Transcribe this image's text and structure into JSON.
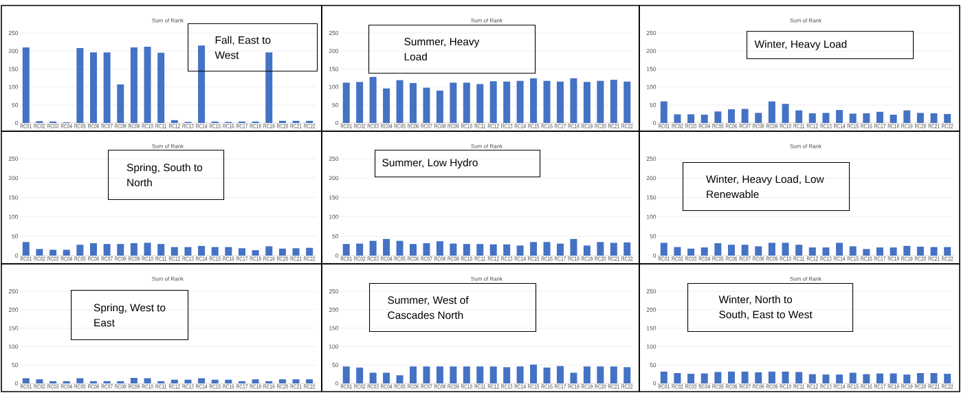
{
  "chart_data": [
    {
      "type": "bar",
      "title": "Sum of Rank",
      "categories": [
        "RC01",
        "RC02",
        "RC03",
        "RC04",
        "RC05",
        "RC06",
        "RC07",
        "RC08",
        "RC09",
        "RC10",
        "RC11",
        "RC12",
        "RC13",
        "RC14",
        "RC15",
        "RC16",
        "RC17",
        "RC18",
        "RC19",
        "RC20",
        "RC21",
        "RC22"
      ],
      "values": [
        210,
        5,
        4,
        2,
        208,
        196,
        196,
        107,
        210,
        212,
        195,
        8,
        3,
        215,
        4,
        3,
        4,
        4,
        196,
        6,
        6,
        6
      ],
      "color": "#4472c4",
      "ylim": [
        0,
        250
      ],
      "yticks": [
        0,
        50,
        100,
        150,
        200,
        250
      ],
      "grid": "y",
      "annotations": [
        "Fall, East to West"
      ]
    },
    {
      "type": "bar",
      "title": "Sum of Rank",
      "categories": [
        "RC01",
        "RC02",
        "RC03",
        "RC04",
        "RC05",
        "RC06",
        "RC07",
        "RC08",
        "RC09",
        "RC10",
        "RC11",
        "RC12",
        "RC13",
        "RC14",
        "RC15",
        "RC16",
        "RC17",
        "RC18",
        "RC19",
        "RC20",
        "RC21",
        "RC22"
      ],
      "values": [
        112,
        114,
        128,
        96,
        119,
        111,
        98,
        90,
        112,
        112,
        108,
        116,
        115,
        117,
        124,
        117,
        115,
        124,
        114,
        117,
        120,
        115
      ],
      "color": "#4472c4",
      "ylim": [
        0,
        250
      ],
      "yticks": [
        0,
        50,
        100,
        150,
        200,
        250
      ],
      "grid": "y",
      "annotations": [
        "Summer, Heavy Load"
      ]
    },
    {
      "type": "bar",
      "title": "Sum of Rank",
      "categories": [
        "RC01",
        "RC02",
        "RC03",
        "RC04",
        "RC05",
        "RC06",
        "RC07",
        "RC08",
        "RC09",
        "RC10",
        "RC11",
        "RC12",
        "RC13",
        "RC14",
        "RC15",
        "RC16",
        "RC17",
        "RC18",
        "RC19",
        "RC20",
        "RC21",
        "RC22"
      ],
      "values": [
        60,
        24,
        24,
        23,
        32,
        38,
        39,
        28,
        60,
        53,
        35,
        27,
        28,
        36,
        26,
        27,
        31,
        23,
        35,
        28,
        27,
        25
      ],
      "color": "#4472c4",
      "ylim": [
        0,
        250
      ],
      "yticks": [
        0,
        50,
        100,
        150,
        200,
        250
      ],
      "grid": "y",
      "annotations": [
        "Winter, Heavy Load"
      ]
    },
    {
      "type": "bar",
      "title": "Sum of Rank",
      "categories": [
        "RC01",
        "RC02",
        "RC03",
        "RC04",
        "RC05",
        "RC06",
        "RC07",
        "RC08",
        "RC09",
        "RC10",
        "RC11",
        "RC12",
        "RC13",
        "RC14",
        "RC15",
        "RC16",
        "RC17",
        "RC18",
        "RC19",
        "RC20",
        "RC21",
        "RC22"
      ],
      "values": [
        35,
        17,
        15,
        15,
        28,
        32,
        30,
        30,
        32,
        33,
        30,
        22,
        22,
        25,
        22,
        22,
        19,
        14,
        24,
        18,
        19,
        20
      ],
      "color": "#4472c4",
      "ylim": [
        0,
        250
      ],
      "yticks": [
        0,
        50,
        100,
        150,
        200,
        250
      ],
      "grid": "y",
      "annotations": [
        "Spring, South to North"
      ]
    },
    {
      "type": "bar",
      "title": "Sum of Rank",
      "categories": [
        "RC01",
        "RC02",
        "RC03",
        "RC04",
        "RC05",
        "RC06",
        "RC07",
        "RC08",
        "RC09",
        "RC10",
        "RC11",
        "RC12",
        "RC13",
        "RC14",
        "RC15",
        "RC16",
        "RC17",
        "RC18",
        "RC19",
        "RC20",
        "RC21",
        "RC22"
      ],
      "values": [
        30,
        31,
        38,
        43,
        38,
        30,
        32,
        37,
        31,
        30,
        30,
        29,
        29,
        26,
        35,
        35,
        31,
        43,
        26,
        35,
        33,
        34
      ],
      "color": "#4472c4",
      "ylim": [
        0,
        250
      ],
      "yticks": [
        0,
        50,
        100,
        150,
        200,
        250
      ],
      "grid": "y",
      "annotations": [
        "Summer, Low Hydro"
      ]
    },
    {
      "type": "bar",
      "title": "Sum of Rank",
      "categories": [
        "RC01",
        "RC02",
        "RC03",
        "RC04",
        "RC05",
        "RC06",
        "RC07",
        "RC08",
        "RC09",
        "RC10",
        "RC11",
        "RC12",
        "RC13",
        "RC14",
        "RC15",
        "RC16",
        "RC17",
        "RC18",
        "RC19",
        "RC20",
        "RC21",
        "RC22"
      ],
      "values": [
        33,
        22,
        18,
        21,
        32,
        28,
        28,
        24,
        33,
        33,
        28,
        21,
        21,
        33,
        24,
        17,
        21,
        21,
        25,
        23,
        22,
        22
      ],
      "color": "#4472c4",
      "ylim": [
        0,
        250
      ],
      "yticks": [
        0,
        50,
        100,
        150,
        200,
        250
      ],
      "grid": "y",
      "annotations": [
        "Winter, Heavy Load, Low Renewable"
      ]
    },
    {
      "type": "bar",
      "title": "Sum of Rank",
      "categories": [
        "RC01",
        "RC02",
        "RC03",
        "RC04",
        "RC05",
        "RC06",
        "RC07",
        "RC08",
        "RC09",
        "RC10",
        "RC11",
        "RC12",
        "RC13",
        "RC14",
        "RC15",
        "RC16",
        "RC17",
        "RC18",
        "RC19",
        "RC20",
        "RC21",
        "RC22"
      ],
      "values": [
        14,
        11,
        6,
        6,
        14,
        6,
        6,
        6,
        15,
        14,
        6,
        10,
        10,
        14,
        10,
        10,
        6,
        11,
        6,
        11,
        11,
        11
      ],
      "color": "#4472c4",
      "ylim": [
        0,
        250
      ],
      "yticks": [
        0,
        50,
        100,
        150,
        200,
        250
      ],
      "grid": "y",
      "annotations": [
        "Spring, West to East"
      ]
    },
    {
      "type": "bar",
      "title": "Sum of Rank",
      "categories": [
        "RC01",
        "RC02",
        "RC03",
        "RC04",
        "RC05",
        "RC06",
        "RC07",
        "RC08",
        "RC09",
        "RC10",
        "RC11",
        "RC12",
        "RC13",
        "RC14",
        "RC15",
        "RC16",
        "RC17",
        "RC18",
        "RC19",
        "RC20",
        "RC21",
        "RC22"
      ],
      "values": [
        46,
        43,
        29,
        29,
        22,
        46,
        46,
        46,
        46,
        46,
        46,
        46,
        44,
        46,
        51,
        43,
        47,
        29,
        46,
        46,
        46,
        44
      ],
      "color": "#4472c4",
      "ylim": [
        0,
        250
      ],
      "yticks": [
        0,
        50,
        100,
        150,
        200,
        250
      ],
      "grid": "y",
      "annotations": [
        "Summer, West of Cascades North"
      ]
    },
    {
      "type": "bar",
      "title": "Sum of Rank",
      "categories": [
        "RC01",
        "RC02",
        "RC03",
        "RC04",
        "RC05",
        "RC06",
        "RC07",
        "RC08",
        "RC09",
        "RC10",
        "RC11",
        "RC12",
        "RC13",
        "RC14",
        "RC15",
        "RC16",
        "RC17",
        "RC18",
        "RC19",
        "RC20",
        "RC21",
        "RC22"
      ],
      "values": [
        32,
        28,
        26,
        27,
        31,
        32,
        32,
        30,
        32,
        32,
        31,
        25,
        24,
        24,
        29,
        25,
        27,
        27,
        24,
        28,
        28,
        26
      ],
      "color": "#4472c4",
      "ylim": [
        0,
        250
      ],
      "yticks": [
        0,
        50,
        100,
        150,
        200,
        250
      ],
      "grid": "y",
      "annotations": [
        "Winter, North to South, East to West"
      ]
    }
  ]
}
